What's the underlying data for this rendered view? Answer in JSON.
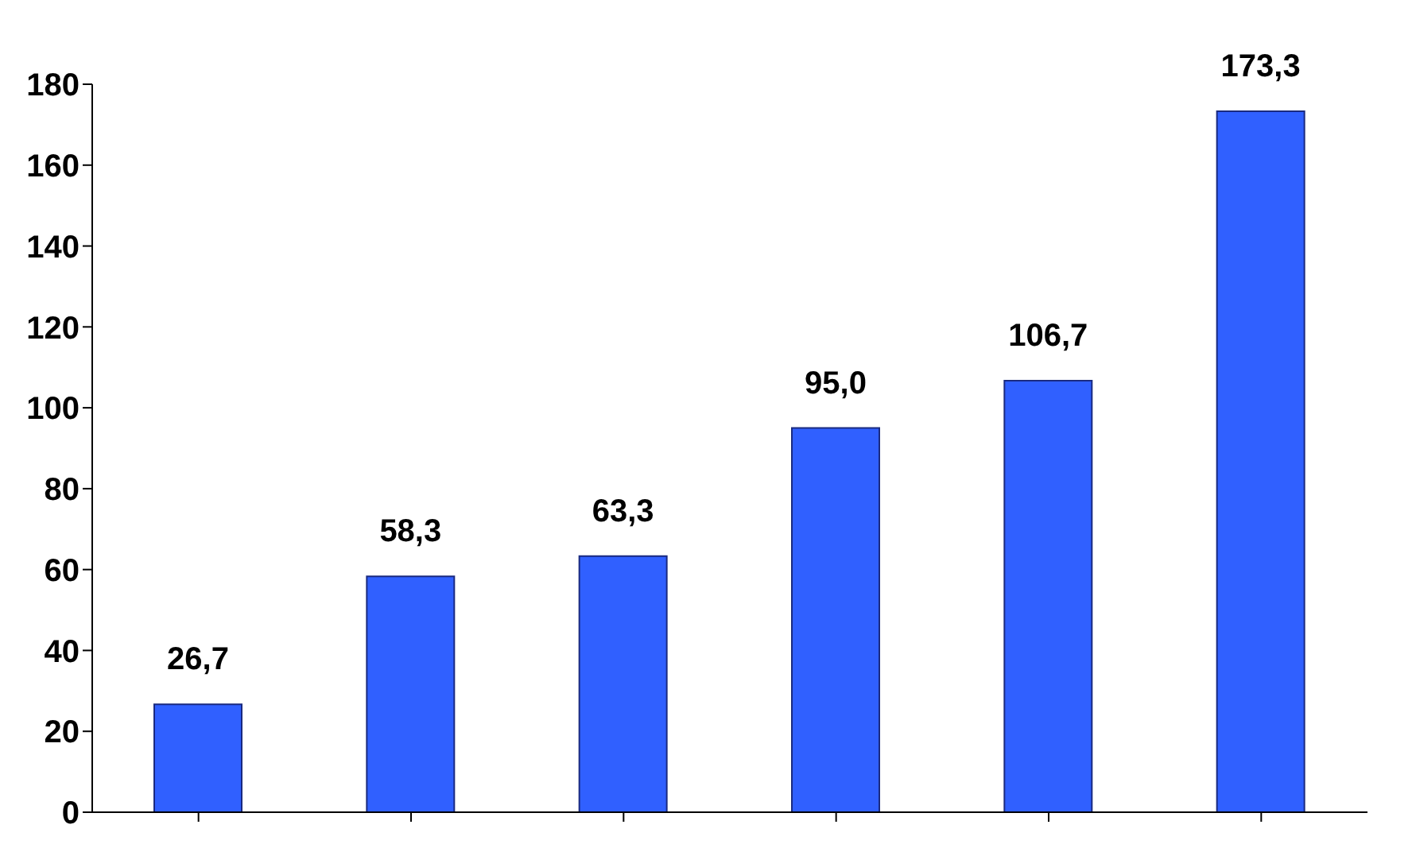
{
  "chart_data": {
    "type": "bar",
    "categories": [
      null,
      null,
      null,
      null,
      null,
      null
    ],
    "values": [
      26.7,
      58.3,
      63.3,
      95.0,
      106.7,
      173.3
    ],
    "value_labels": [
      "26,7",
      "58,3",
      "63,3",
      "95,0",
      "106,7",
      "173,3"
    ],
    "color": "#3060ff",
    "ylim": [
      0,
      180
    ],
    "yticks": [
      0,
      20,
      40,
      60,
      80,
      100,
      120,
      140,
      160,
      180
    ],
    "grid": false,
    "legend": false
  }
}
